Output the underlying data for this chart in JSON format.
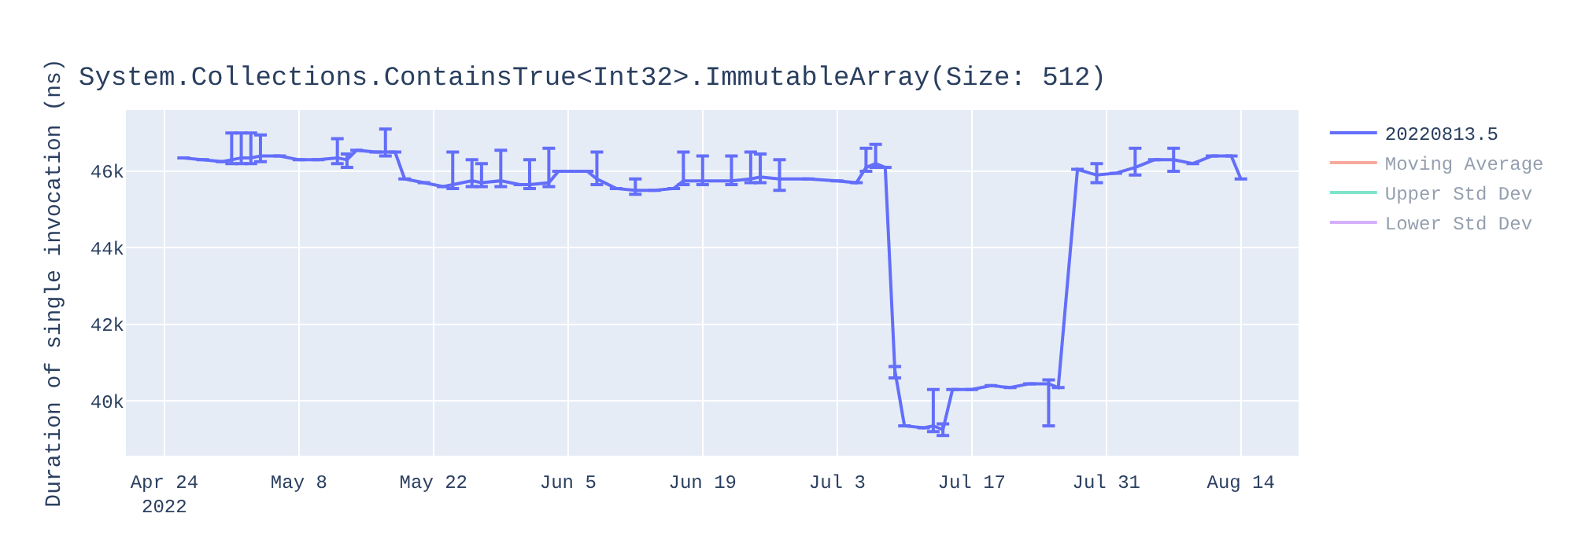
{
  "chart_data": {
    "type": "line",
    "title": "System.Collections.ContainsTrue<Int32>.ImmutableArray(Size: 512)",
    "ylabel": "Duration of single invocation (ns)",
    "x": [
      "2022-04-26",
      "2022-04-28",
      "2022-04-30",
      "2022-05-01",
      "2022-05-02",
      "2022-05-03",
      "2022-05-04",
      "2022-05-06",
      "2022-05-08",
      "2022-05-10",
      "2022-05-12",
      "2022-05-13",
      "2022-05-14",
      "2022-05-16",
      "2022-05-17",
      "2022-05-18",
      "2022-05-19",
      "2022-05-21",
      "2022-05-23",
      "2022-05-24",
      "2022-05-26",
      "2022-05-27",
      "2022-05-29",
      "2022-05-31",
      "2022-06-01",
      "2022-06-03",
      "2022-06-04",
      "2022-06-07",
      "2022-06-08",
      "2022-06-10",
      "2022-06-12",
      "2022-06-14",
      "2022-06-16",
      "2022-06-17",
      "2022-06-19",
      "2022-06-22",
      "2022-06-24",
      "2022-06-25",
      "2022-06-27",
      "2022-06-30",
      "2022-07-03",
      "2022-07-05",
      "2022-07-06",
      "2022-07-07",
      "2022-07-08",
      "2022-07-09",
      "2022-07-10",
      "2022-07-12",
      "2022-07-13",
      "2022-07-14",
      "2022-07-15",
      "2022-07-17",
      "2022-07-19",
      "2022-07-21",
      "2022-07-23",
      "2022-07-25",
      "2022-07-26",
      "2022-07-28",
      "2022-07-30",
      "2022-08-01",
      "2022-08-03",
      "2022-08-05",
      "2022-08-07",
      "2022-08-09",
      "2022-08-11",
      "2022-08-13",
      "2022-08-14"
    ],
    "series": [
      {
        "name": "20220813.5",
        "color": "#636efa",
        "values": [
          46350,
          46300,
          46250,
          46300,
          46350,
          46350,
          46400,
          46400,
          46300,
          46300,
          46350,
          46300,
          46550,
          46500,
          46500,
          46500,
          45800,
          45700,
          45600,
          45650,
          45750,
          45700,
          45750,
          45650,
          45650,
          45700,
          46000,
          46000,
          45800,
          45550,
          45500,
          45500,
          45550,
          45750,
          45750,
          45750,
          45800,
          45850,
          45800,
          45800,
          45750,
          45700,
          46100,
          46200,
          46100,
          40800,
          39350,
          39300,
          39350,
          39250,
          40300,
          40300,
          40400,
          40350,
          40450,
          40450,
          40350,
          46050,
          45900,
          45950,
          46100,
          46300,
          46300,
          46200,
          46400,
          46400,
          45800
        ],
        "errors": [
          null,
          null,
          null,
          [
            46200,
            47000
          ],
          [
            46200,
            47000
          ],
          [
            46200,
            47000
          ],
          [
            46250,
            46950
          ],
          null,
          null,
          null,
          [
            46200,
            46850
          ],
          [
            46100,
            46450
          ],
          null,
          null,
          [
            46400,
            47100
          ],
          null,
          null,
          null,
          null,
          [
            45550,
            46500
          ],
          [
            45600,
            46300
          ],
          [
            45600,
            46200
          ],
          [
            45600,
            46550
          ],
          null,
          [
            45550,
            46300
          ],
          [
            45600,
            46600
          ],
          null,
          null,
          [
            45650,
            46500
          ],
          null,
          [
            45400,
            45800
          ],
          null,
          null,
          [
            45650,
            46500
          ],
          [
            45650,
            46400
          ],
          [
            45650,
            46400
          ],
          [
            45700,
            46500
          ],
          [
            45700,
            46450
          ],
          [
            45500,
            46300
          ],
          null,
          null,
          null,
          [
            46000,
            46600
          ],
          [
            46100,
            46700
          ],
          null,
          [
            40600,
            40900
          ],
          null,
          null,
          [
            39200,
            40300
          ],
          [
            39100,
            39400
          ],
          null,
          null,
          null,
          null,
          null,
          [
            39350,
            40550
          ],
          null,
          null,
          [
            45700,
            46200
          ],
          null,
          [
            45900,
            46600
          ],
          null,
          [
            46000,
            46600
          ],
          null,
          null,
          null,
          null
        ]
      },
      {
        "name": "Moving Average",
        "color": "#ef553b",
        "values": [
          null,
          null,
          null,
          null,
          null,
          null,
          null,
          null,
          null,
          null,
          null,
          null,
          null,
          null,
          null,
          null,
          null,
          null,
          null,
          null,
          null,
          null,
          null,
          null,
          null,
          null,
          null,
          null,
          null,
          null,
          null,
          null,
          null,
          null,
          null,
          null,
          null,
          null,
          null,
          null,
          null,
          null,
          null,
          null,
          null,
          null,
          null,
          null,
          null,
          null,
          null,
          null,
          null,
          null,
          null,
          null,
          null,
          null,
          null,
          null,
          null,
          null,
          null,
          null,
          null,
          null,
          null
        ]
      },
      {
        "name": "Upper Std Dev",
        "color": "#00cc96",
        "values": [
          null,
          null,
          null,
          null,
          null,
          null,
          null,
          null,
          null,
          null,
          null,
          null,
          null,
          null,
          null,
          null,
          null,
          null,
          null,
          null,
          null,
          null,
          null,
          null,
          null,
          null,
          null,
          null,
          null,
          null,
          null,
          null,
          null,
          null,
          null,
          null,
          null,
          null,
          null,
          null,
          null,
          null,
          null,
          null,
          null,
          null,
          null,
          null,
          null,
          null,
          null,
          null,
          null,
          null,
          null,
          null,
          null,
          null,
          null,
          null,
          null,
          null,
          null,
          null,
          null,
          null,
          null
        ]
      },
      {
        "name": "Lower Std Dev",
        "color": "#ab63fa",
        "values": [
          null,
          null,
          null,
          null,
          null,
          null,
          null,
          null,
          null,
          null,
          null,
          null,
          null,
          null,
          null,
          null,
          null,
          null,
          null,
          null,
          null,
          null,
          null,
          null,
          null,
          null,
          null,
          null,
          null,
          null,
          null,
          null,
          null,
          null,
          null,
          null,
          null,
          null,
          null,
          null,
          null,
          null,
          null,
          null,
          null,
          null,
          null,
          null,
          null,
          null,
          null,
          null,
          null,
          null,
          null,
          null,
          null,
          null,
          null,
          null,
          null,
          null,
          null,
          null,
          null,
          null,
          null
        ]
      }
    ],
    "xlim": [
      "2022-04-20",
      "2022-08-20"
    ],
    "xticks": [
      {
        "value": "2022-04-24",
        "label": "Apr 24\n2022"
      },
      {
        "value": "2022-05-08",
        "label": "May 8"
      },
      {
        "value": "2022-05-22",
        "label": "May 22"
      },
      {
        "value": "2022-06-05",
        "label": "Jun 5"
      },
      {
        "value": "2022-06-19",
        "label": "Jun 19"
      },
      {
        "value": "2022-07-03",
        "label": "Jul 3"
      },
      {
        "value": "2022-07-17",
        "label": "Jul 17"
      },
      {
        "value": "2022-07-31",
        "label": "Jul 31"
      },
      {
        "value": "2022-08-14",
        "label": "Aug 14"
      }
    ],
    "ylim": [
      38570,
      47600
    ],
    "yticks": [
      {
        "value": 40000,
        "label": "40k"
      },
      {
        "value": 42000,
        "label": "42k"
      },
      {
        "value": 44000,
        "label": "44k"
      },
      {
        "value": 46000,
        "label": "46k"
      }
    ],
    "grid": true,
    "legend": "top right",
    "marker": "none",
    "line_style": "solid"
  }
}
